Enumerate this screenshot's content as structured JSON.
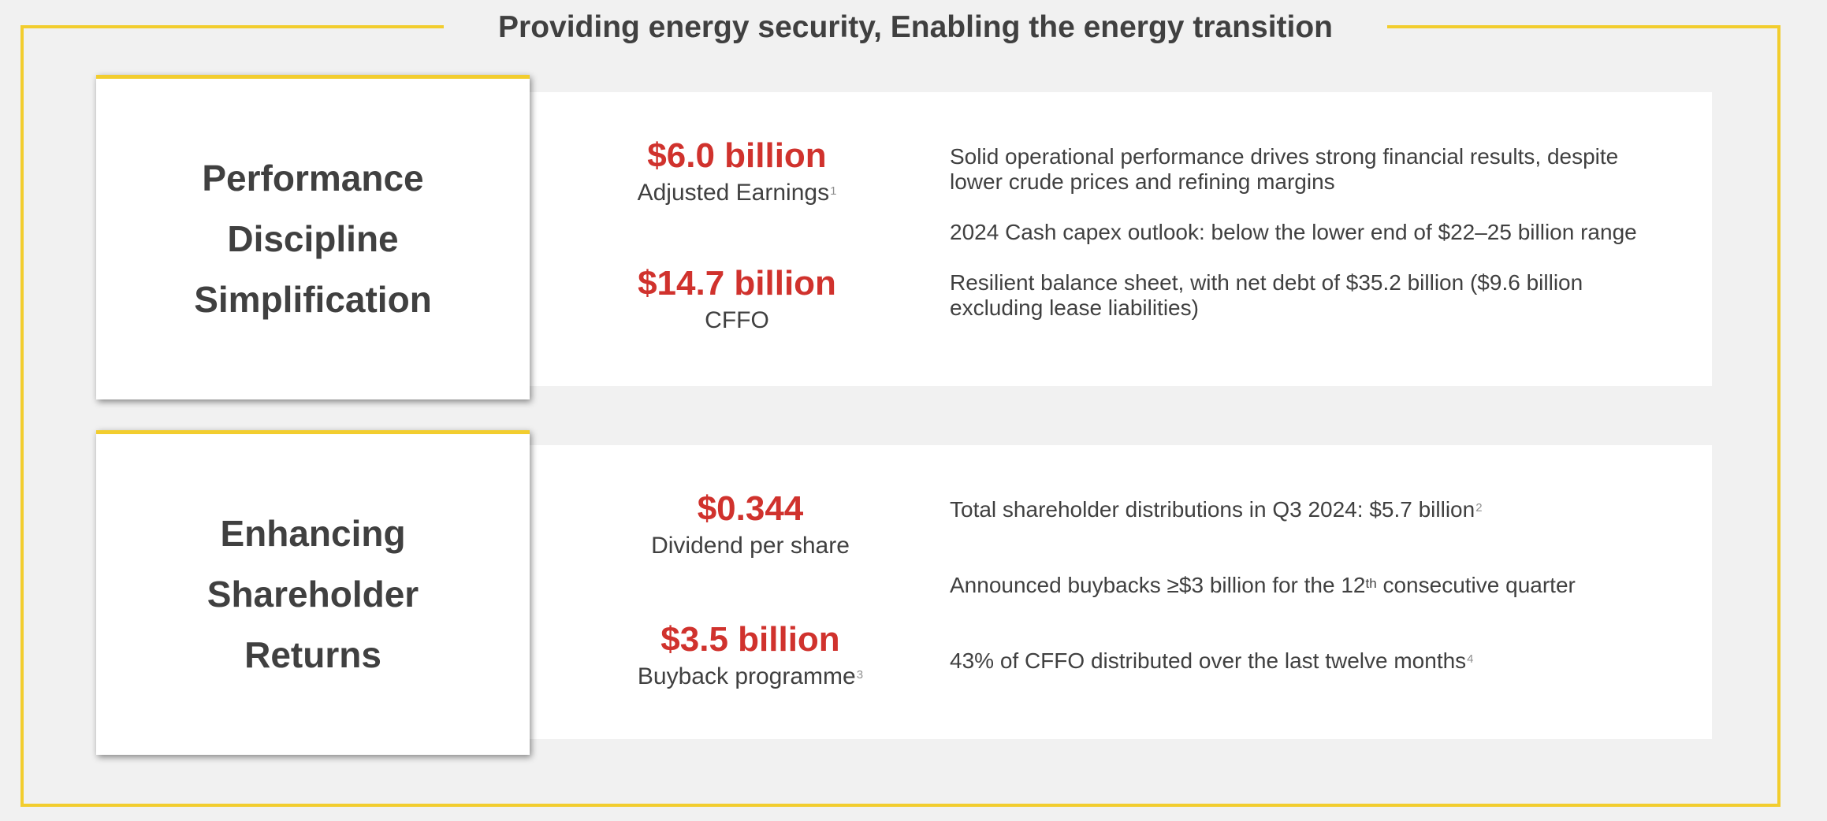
{
  "title": "Providing energy security, Enabling the energy transition",
  "sections": [
    {
      "card_lines": [
        "Performance",
        "Discipline",
        "Simplification"
      ],
      "metrics": [
        {
          "value": "$6.0 billion",
          "label": "Adjusted Earnings",
          "footnote": "1"
        },
        {
          "value": "$14.7 billion",
          "label": "CFFO",
          "footnote": ""
        }
      ],
      "bullets": [
        {
          "text": "Solid operational performance drives strong financial results, despite lower crude prices and refining margins"
        },
        {
          "text": "2024 Cash capex outlook: below the lower end of $22–25 billion range"
        },
        {
          "text": "Resilient balance sheet, with net debt of $35.2 billion ($9.6 billion excluding lease liabilities)"
        }
      ]
    },
    {
      "card_lines": [
        "Enhancing",
        "Shareholder",
        "Returns"
      ],
      "metrics": [
        {
          "value": "$0.344",
          "label": "Dividend per share",
          "footnote": ""
        },
        {
          "value": "$3.5 billion",
          "label": "Buyback programme",
          "footnote": "3"
        }
      ],
      "bullets": [
        {
          "text": "Total shareholder distributions in Q3 2024: $5.7 billion",
          "footnote": "2"
        },
        {
          "text_before": "Announced buybacks ≥$3 billion for the 12",
          "superscript": "th",
          "text_after": " consecutive quarter"
        },
        {
          "text": "43% of CFFO distributed over the last twelve months",
          "footnote": "4"
        }
      ]
    }
  ],
  "colors": {
    "accent_yellow": "#f2cd2e",
    "metric_red": "#d0322d",
    "text_dark": "#404040",
    "background": "#f1f1f1"
  }
}
